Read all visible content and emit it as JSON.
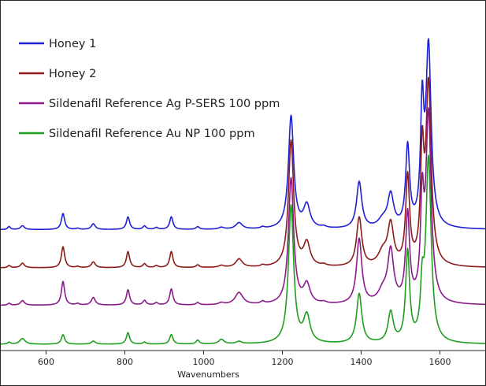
{
  "chart_data": {
    "type": "line",
    "title": "",
    "xlabel": "Wavenumbers",
    "ylabel": "",
    "xlim": [
      485,
      1715
    ],
    "xticks": [
      600,
      800,
      1000,
      1200,
      1400,
      1600
    ],
    "grid": false,
    "legend_position": "top-left",
    "series": [
      {
        "name": "Honey 1",
        "color": "#1f1fd6",
        "offset": 3.0,
        "baseline": 0.02,
        "peaks": [
          [
            506,
            0.08,
            4
          ],
          [
            540,
            0.1,
            6
          ],
          [
            643,
            0.42,
            5
          ],
          [
            680,
            0.03,
            5
          ],
          [
            720,
            0.15,
            6
          ],
          [
            808,
            0.33,
            5
          ],
          [
            850,
            0.09,
            5
          ],
          [
            880,
            0.05,
            5
          ],
          [
            918,
            0.33,
            5
          ],
          [
            985,
            0.07,
            5
          ],
          [
            1045,
            0.05,
            8
          ],
          [
            1090,
            0.17,
            10
          ],
          [
            1150,
            0.04,
            6
          ],
          [
            1222,
            2.95,
            8
          ],
          [
            1262,
            0.6,
            10
          ],
          [
            1305,
            0.04,
            8
          ],
          [
            1395,
            1.22,
            8
          ],
          [
            1455,
            0.2,
            14
          ],
          [
            1475,
            0.85,
            9
          ],
          [
            1518,
            2.1,
            6
          ],
          [
            1555,
            2.9,
            5
          ],
          [
            1571,
            4.7,
            8
          ]
        ]
      },
      {
        "name": "Honey 2",
        "color": "#8b1a1a",
        "offset": 2.0,
        "baseline": 0.02,
        "peaks": [
          [
            506,
            0.06,
            4
          ],
          [
            540,
            0.12,
            6
          ],
          [
            643,
            0.55,
            5
          ],
          [
            680,
            0.03,
            5
          ],
          [
            720,
            0.15,
            6
          ],
          [
            808,
            0.42,
            5
          ],
          [
            850,
            0.1,
            5
          ],
          [
            880,
            0.05,
            5
          ],
          [
            918,
            0.42,
            5
          ],
          [
            985,
            0.07,
            5
          ],
          [
            1045,
            0.05,
            8
          ],
          [
            1090,
            0.22,
            10
          ],
          [
            1150,
            0.04,
            6
          ],
          [
            1222,
            3.3,
            8
          ],
          [
            1262,
            0.6,
            10
          ],
          [
            1305,
            0.04,
            8
          ],
          [
            1395,
            1.28,
            8
          ],
          [
            1455,
            0.35,
            14
          ],
          [
            1475,
            1.05,
            9
          ],
          [
            1518,
            2.3,
            6
          ],
          [
            1555,
            2.7,
            5
          ],
          [
            1571,
            4.7,
            8
          ]
        ]
      },
      {
        "name": "Sildenafil Reference Ag P-SERS 100 ppm",
        "color": "#8a1a8a",
        "offset": 1.0,
        "baseline": 0.04,
        "peaks": [
          [
            506,
            0.05,
            4
          ],
          [
            540,
            0.12,
            6
          ],
          [
            643,
            0.62,
            5
          ],
          [
            680,
            0.04,
            5
          ],
          [
            720,
            0.2,
            6
          ],
          [
            808,
            0.4,
            5
          ],
          [
            850,
            0.12,
            5
          ],
          [
            880,
            0.06,
            5
          ],
          [
            918,
            0.42,
            5
          ],
          [
            985,
            0.06,
            5
          ],
          [
            1045,
            0.05,
            8
          ],
          [
            1090,
            0.32,
            12
          ],
          [
            1150,
            0.06,
            6
          ],
          [
            1222,
            3.3,
            8
          ],
          [
            1262,
            0.5,
            10
          ],
          [
            1305,
            0.04,
            8
          ],
          [
            1395,
            1.7,
            8
          ],
          [
            1455,
            0.3,
            14
          ],
          [
            1475,
            1.35,
            9
          ],
          [
            1518,
            2.3,
            6
          ],
          [
            1555,
            2.4,
            5
          ],
          [
            1571,
            4.9,
            8
          ]
        ]
      },
      {
        "name": "Sildenafil Reference Au NP 100 ppm",
        "color": "#1e9e1e",
        "offset": 0.0,
        "baseline": 0.02,
        "peaks": [
          [
            506,
            0.05,
            4
          ],
          [
            540,
            0.15,
            8
          ],
          [
            643,
            0.25,
            5
          ],
          [
            720,
            0.08,
            6
          ],
          [
            808,
            0.3,
            5
          ],
          [
            850,
            0.05,
            5
          ],
          [
            918,
            0.25,
            5
          ],
          [
            985,
            0.1,
            5
          ],
          [
            1045,
            0.12,
            8
          ],
          [
            1090,
            0.06,
            8
          ],
          [
            1222,
            3.6,
            8
          ],
          [
            1262,
            0.7,
            10
          ],
          [
            1395,
            1.3,
            8
          ],
          [
            1475,
            0.8,
            8
          ],
          [
            1518,
            2.35,
            6
          ],
          [
            1555,
            1.2,
            5
          ],
          [
            1571,
            4.8,
            8
          ]
        ]
      }
    ]
  }
}
